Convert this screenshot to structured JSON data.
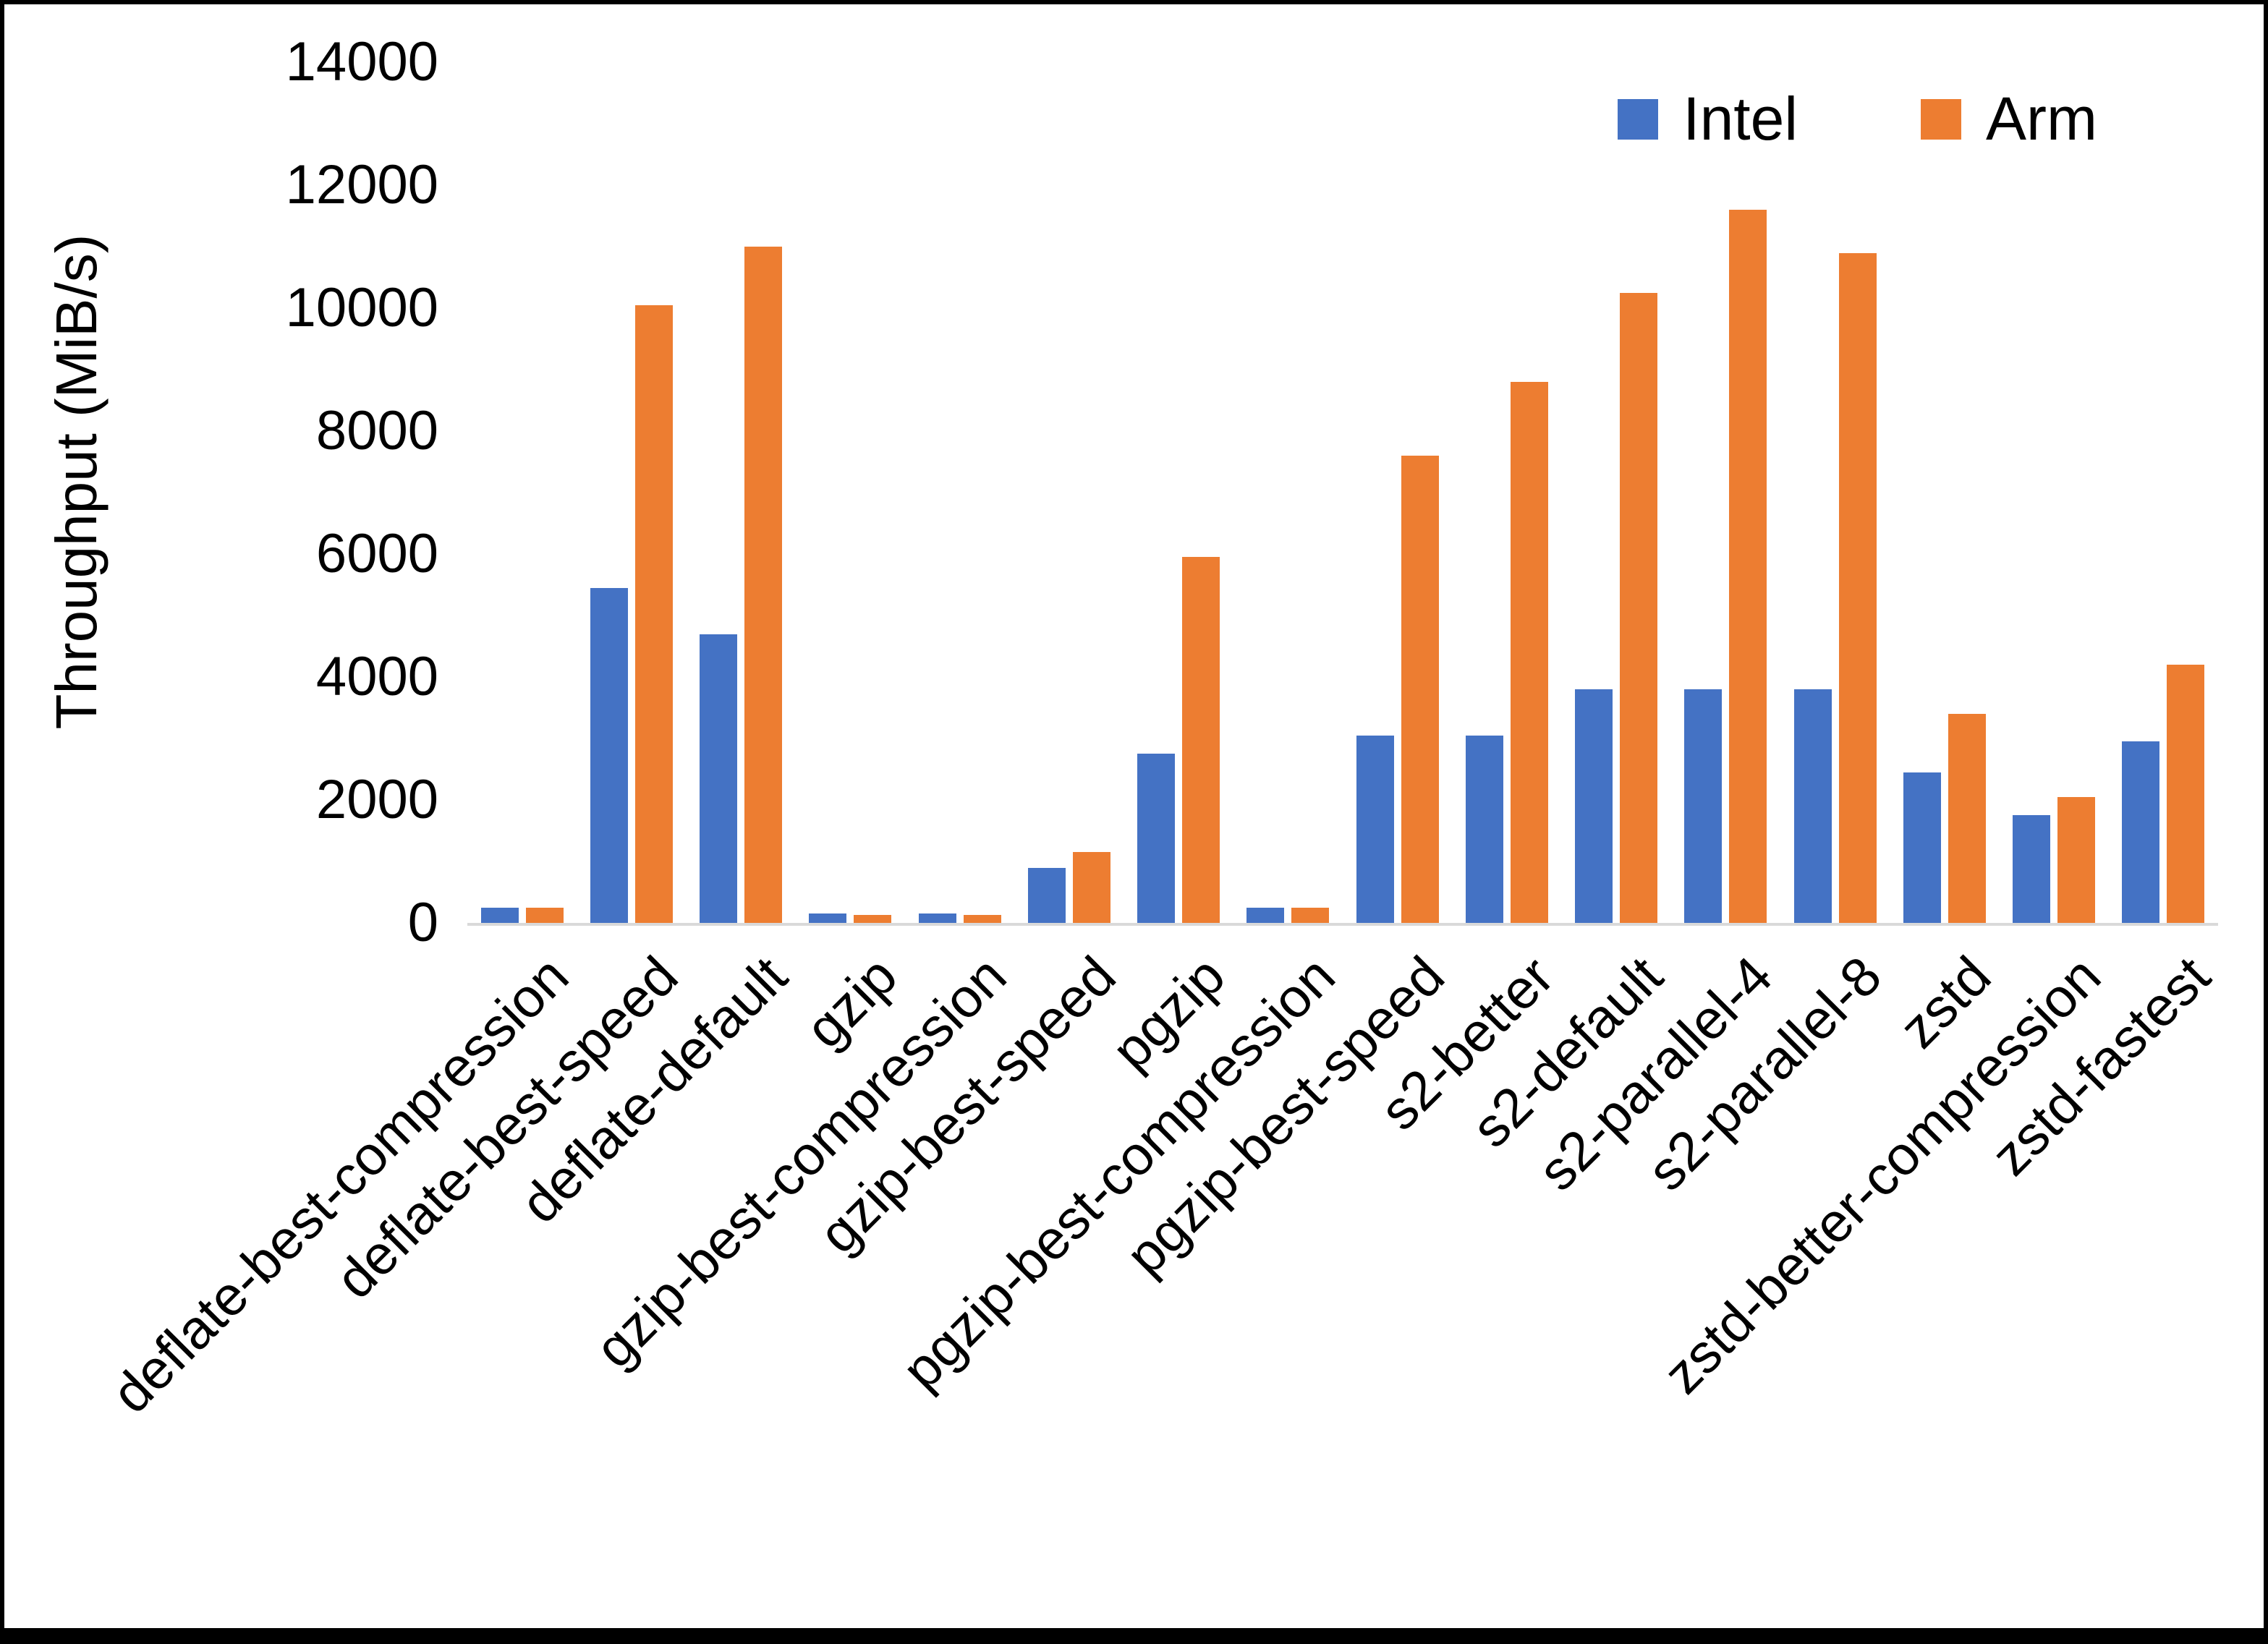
{
  "chart_data": {
    "type": "bar",
    "title": "",
    "xlabel": "",
    "ylabel": "Throughput (MiB/s)",
    "ylim": [
      0,
      14000
    ],
    "ytick_step": 2000,
    "grid": false,
    "legend_position": "top-right",
    "categories": [
      "deflate-best-compression",
      "deflate-best-speed",
      "deflate-default",
      "gzip",
      "gzip-best-compression",
      "gzip-best-speed",
      "pgzip",
      "pgzip-best-compression",
      "pgzip-best-speed",
      "s2-better",
      "s2-default",
      "s2-parallel-4",
      "s2-parallel-8",
      "zstd",
      "zstd-better-compression",
      "zstd-fastest"
    ],
    "series": [
      {
        "name": "Intel",
        "color": "#4472C4",
        "values": [
          250,
          5450,
          4700,
          150,
          150,
          900,
          2750,
          250,
          3050,
          3050,
          3800,
          3800,
          3800,
          2450,
          1750,
          2950
        ]
      },
      {
        "name": "Arm",
        "color": "#ED7D31",
        "values": [
          250,
          10050,
          11000,
          130,
          130,
          1150,
          5950,
          250,
          7600,
          8800,
          10250,
          11600,
          10900,
          3400,
          2050,
          4200
        ]
      }
    ]
  }
}
